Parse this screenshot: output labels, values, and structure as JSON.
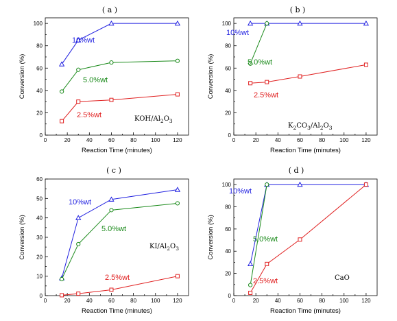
{
  "colors": {
    "s10": "#1f1fe0",
    "s5": "#1a8a1a",
    "s25": "#e01f1f"
  },
  "chart_data": [
    {
      "panel_label": "( a )",
      "type": "line",
      "xlabel": "Reaction Time (minutes)",
      "ylabel": "Conversion (%)",
      "xlim": [
        0,
        130
      ],
      "ylim": [
        0,
        105
      ],
      "xticks": [
        0,
        20,
        40,
        60,
        80,
        100,
        120
      ],
      "yticks": [
        0,
        20,
        40,
        60,
        80,
        100
      ],
      "catalyst": {
        "main": "KOH/Al",
        "sub1": "2",
        "mid": "O",
        "sub2": "3"
      },
      "series": [
        {
          "name": "10%wt",
          "marker": "triangle",
          "x": [
            15,
            30,
            60,
            120
          ],
          "y": [
            63.5,
            85,
            100,
            100
          ]
        },
        {
          "name": "5.0%wt",
          "marker": "circle",
          "x": [
            15,
            30,
            60,
            120
          ],
          "y": [
            39,
            58.5,
            65,
            66.5
          ]
        },
        {
          "name": "2.5%wt",
          "marker": "square",
          "x": [
            15,
            30,
            60,
            120
          ],
          "y": [
            12.5,
            30,
            31.5,
            36.5
          ]
        }
      ]
    },
    {
      "panel_label": "( b )",
      "type": "line",
      "xlabel": "Reaction Time (minutes)",
      "ylabel": "Conversion (%)",
      "xlim": [
        0,
        130
      ],
      "ylim": [
        0,
        105
      ],
      "xticks": [
        0,
        20,
        40,
        60,
        80,
        100,
        120
      ],
      "yticks": [
        0,
        20,
        40,
        60,
        80,
        100
      ],
      "catalyst": {
        "main": "K",
        "sub1": "2",
        "mid": "CO",
        "sub2": "3",
        "tail": "/Al",
        "sub3": "2",
        "tail2": "O",
        "sub4": "3"
      },
      "series": [
        {
          "name": "10%wt",
          "marker": "triangle",
          "x": [
            15,
            30,
            60,
            120
          ],
          "y": [
            100,
            100,
            100,
            100
          ]
        },
        {
          "name": "5.0%wt",
          "marker": "circle",
          "x": [
            15,
            30
          ],
          "y": [
            64,
            100
          ]
        },
        {
          "name": "2.5%wt",
          "marker": "square",
          "x": [
            15,
            30,
            60,
            120
          ],
          "y": [
            46.5,
            47.5,
            52.5,
            63
          ]
        }
      ]
    },
    {
      "panel_label": "( c )",
      "type": "line",
      "xlabel": "Reaction Time (minutes)",
      "ylabel": "Conversion (%)",
      "xlim": [
        0,
        130
      ],
      "ylim": [
        0,
        60
      ],
      "xticks": [
        0,
        20,
        40,
        60,
        80,
        100,
        120
      ],
      "yticks": [
        0,
        10,
        20,
        30,
        40,
        50,
        60
      ],
      "catalyst": {
        "main": "KI/Al",
        "sub1": "2",
        "mid": "O",
        "sub2": "3"
      },
      "series": [
        {
          "name": "10%wt",
          "marker": "triangle",
          "x": [
            15,
            30,
            60,
            120
          ],
          "y": [
            9,
            40,
            49.5,
            54.5
          ]
        },
        {
          "name": "5.0%wt",
          "marker": "circle",
          "x": [
            15,
            30,
            60,
            120
          ],
          "y": [
            8.5,
            26.5,
            44,
            47.5
          ]
        },
        {
          "name": "2.5%wt",
          "marker": "square",
          "x": [
            15,
            30,
            60,
            120
          ],
          "y": [
            0.2,
            1,
            3,
            10
          ]
        }
      ]
    },
    {
      "panel_label": "( d )",
      "type": "line",
      "xlabel": "Reaction Time (minutes)",
      "ylabel": "Conversion (%)",
      "xlim": [
        0,
        130
      ],
      "ylim": [
        0,
        105
      ],
      "xticks": [
        0,
        20,
        40,
        60,
        80,
        100,
        120
      ],
      "yticks": [
        0,
        20,
        40,
        60,
        80,
        100
      ],
      "catalyst": {
        "main": "CaO"
      },
      "series": [
        {
          "name": "10%wt",
          "marker": "triangle",
          "x": [
            15,
            30,
            60,
            120
          ],
          "y": [
            28.5,
            100,
            100,
            100
          ]
        },
        {
          "name": "5.0%wt",
          "marker": "circle",
          "x": [
            15,
            30
          ],
          "y": [
            9.5,
            100
          ]
        },
        {
          "name": "2.5%wt",
          "marker": "square",
          "x": [
            15,
            30,
            60,
            120
          ],
          "y": [
            2.5,
            28.5,
            50.5,
            100
          ]
        }
      ]
    }
  ]
}
